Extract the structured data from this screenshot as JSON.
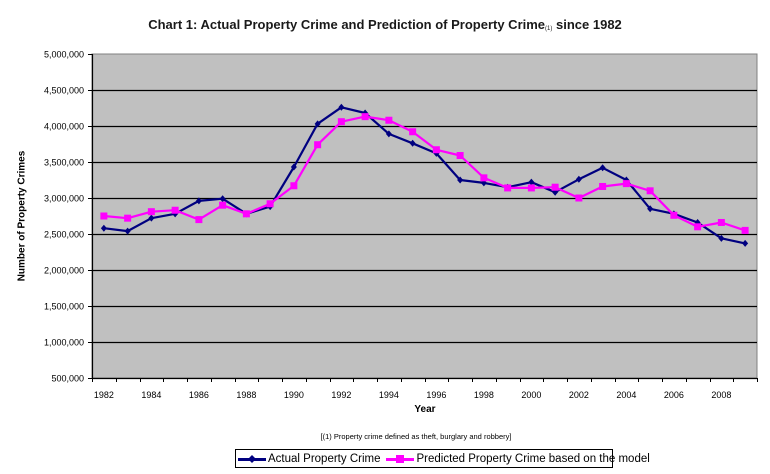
{
  "chart_data": {
    "type": "line",
    "title": "Chart 1: Actual Property Crime and Prediction of Property Crime",
    "title_superscript": "(1)",
    "title_suffix": "since 1982",
    "xlabel": "Year",
    "ylabel": "Number of Property Crimes",
    "footnote": "[(1) Property crime defined as theft, burglary and robbery]",
    "ylim": [
      500000,
      5000000
    ],
    "ytick_step": 500000,
    "yticks": [
      "500,000",
      "1,000,000",
      "1,500,000",
      "2,000,000",
      "2,500,000",
      "3,000,000",
      "3,500,000",
      "4,000,000",
      "4,500,000",
      "5,000,000"
    ],
    "xticks": [
      "1982",
      "1984",
      "1986",
      "1988",
      "1990",
      "1992",
      "1994",
      "1996",
      "1998",
      "2000",
      "2002",
      "2004",
      "2006",
      "2008"
    ],
    "grid": true,
    "legend_position": "bottom",
    "plot_background": "#c0c0c0",
    "x": [
      1982,
      1983,
      1984,
      1985,
      1986,
      1987,
      1988,
      1989,
      1990,
      1991,
      1992,
      1993,
      1994,
      1995,
      1996,
      1997,
      1998,
      1999,
      2000,
      2001,
      2002,
      2003,
      2004,
      2005,
      2006,
      2007,
      2008,
      2009
    ],
    "series": [
      {
        "name": "Actual Property Crime",
        "color": "#000080",
        "marker": "diamond",
        "values": [
          2580000,
          2540000,
          2720000,
          2780000,
          2960000,
          2990000,
          2780000,
          2880000,
          3430000,
          4030000,
          4260000,
          4180000,
          3890000,
          3760000,
          3620000,
          3250000,
          3210000,
          3150000,
          3220000,
          3080000,
          3260000,
          3420000,
          3250000,
          2850000,
          2780000,
          2660000,
          2440000,
          2370000
        ]
      },
      {
        "name": "Predicted Property Crime based on the model",
        "color": "#ff00ff",
        "marker": "square",
        "values": [
          2750000,
          2720000,
          2810000,
          2830000,
          2700000,
          2900000,
          2780000,
          2920000,
          3170000,
          3740000,
          4060000,
          4130000,
          4080000,
          3920000,
          3670000,
          3590000,
          3280000,
          3140000,
          3140000,
          3150000,
          3000000,
          3160000,
          3200000,
          3100000,
          2760000,
          2600000,
          2660000,
          2550000
        ]
      }
    ]
  }
}
